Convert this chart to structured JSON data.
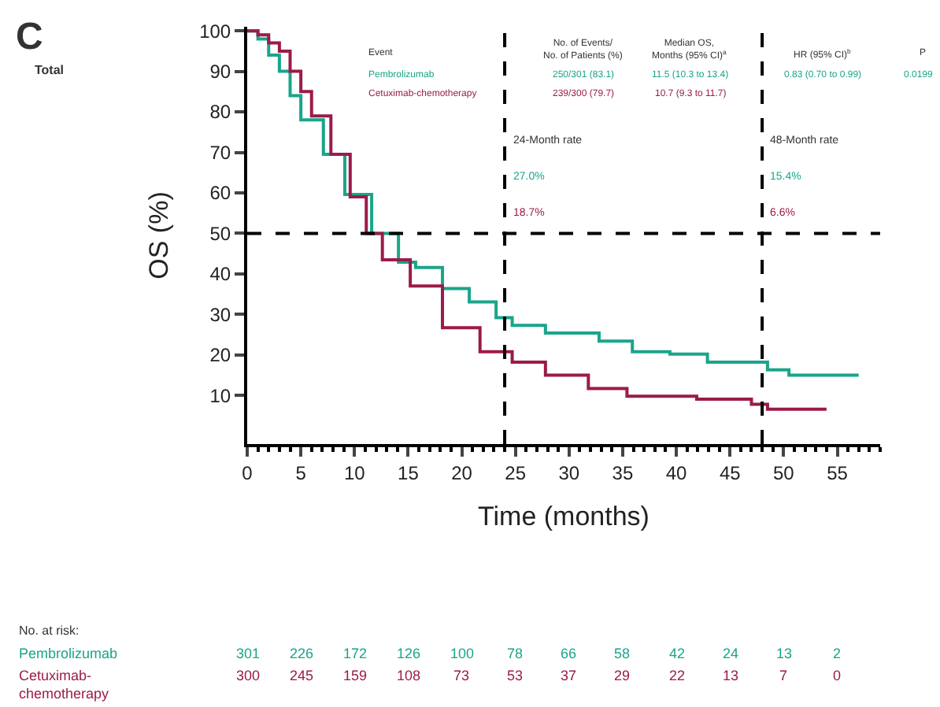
{
  "chart_data": {
    "type": "step",
    "xlabel": "Time (months)",
    "ylabel": "OS (%)",
    "xlim": [
      0,
      59
    ],
    "xticks": [
      0,
      5,
      10,
      15,
      20,
      25,
      30,
      35,
      40,
      45,
      50,
      55
    ],
    "ylim": [
      -2,
      101
    ],
    "yticks": [
      10,
      20,
      30,
      40,
      50,
      60,
      70,
      80,
      90,
      100
    ],
    "legend": false,
    "marker": "none",
    "line_style": "solid",
    "series": [
      {
        "name": "Pembrolizumab",
        "color": "#1aa58a",
        "x": [
          0,
          1,
          2,
          3,
          4,
          5,
          7.1,
          9.1,
          11.6,
          14.1,
          15.7,
          18.2,
          20.7,
          23.2,
          24.7,
          27.8,
          32.8,
          35.9,
          39.4,
          42.9,
          48.5,
          50.5,
          57
        ],
        "values": [
          100,
          98,
          94,
          90,
          84,
          78,
          69.5,
          59.6,
          50,
          42.9,
          41.6,
          36.4,
          33.1,
          29.2,
          27.3,
          25.4,
          23.4,
          20.8,
          20.2,
          18.2,
          16.3,
          15,
          15
        ]
      },
      {
        "name": "Cetuximab-chemotherapy",
        "color": "#9b1b4a",
        "x": [
          0,
          1,
          2,
          3,
          4,
          5,
          6,
          7.8,
          9.6,
          11.1,
          12.6,
          15.2,
          18.2,
          21.7,
          24.7,
          27.8,
          31.8,
          35.4,
          41.9,
          47,
          48.5,
          54
        ],
        "values": [
          100,
          99,
          97,
          95,
          90,
          85,
          79,
          69.5,
          59,
          50,
          43.5,
          37,
          26.7,
          20.8,
          18.2,
          15,
          11.7,
          9.8,
          9.1,
          7.8,
          6.6,
          6.6
        ]
      }
    ],
    "ref_lines": [
      {
        "axis": "y",
        "value": 50,
        "label": null,
        "line_style": "dashed",
        "color": "#000000"
      },
      {
        "axis": "x",
        "value": 24,
        "label": "24-Month rate",
        "line_style": "dashed",
        "color": "#000000"
      },
      {
        "axis": "x",
        "value": 48,
        "label": "48-Month rate",
        "line_style": "dashed",
        "color": "#000000"
      }
    ],
    "annotations": [
      "C",
      "Total",
      "Event",
      "No. of Events/\nNo. of Patients (%)",
      "Median OS,\nMonths (95% CI)$^{a}$",
      "HR (95% CI)$^{b}$",
      "P",
      "Pembrolizumab",
      "250/301 (83.1)",
      "11.5 (10.3 to 13.4)",
      "0.83 (0.70 to 0.99)",
      "0.0199",
      "Cetuximab-chemotherapy",
      "239/300 (79.7)",
      "10.7 (9.3 to 11.7)",
      "27.0%",
      "18.7%",
      "15.4%",
      "6.6%",
      "No. at risk:",
      "301",
      "226",
      "172",
      "126",
      "100",
      "78",
      "66",
      "58",
      "42",
      "24",
      "13",
      "2",
      "300",
      "245",
      "159",
      "108",
      "73",
      "53",
      "37",
      "29",
      "22",
      "13",
      "7",
      "0"
    ]
  }
}
